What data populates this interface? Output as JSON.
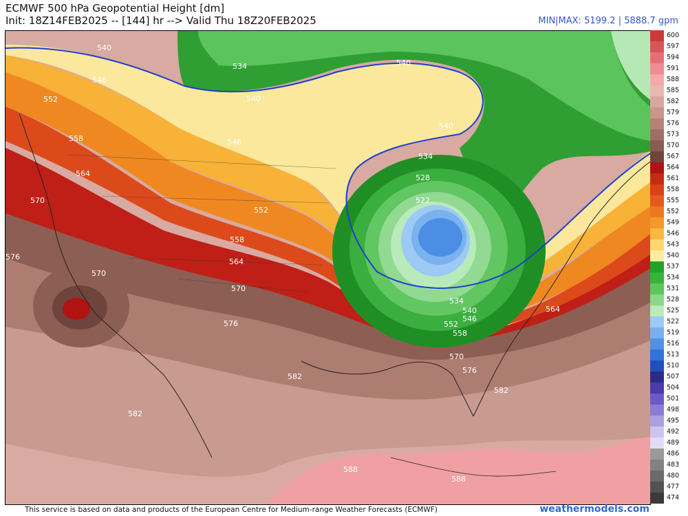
{
  "header": {
    "title_line1": "ECMWF 500 hPa Geopotential Height [dm]",
    "title_line2": "Init: 18Z14FEB2025 -- [144] hr --> Valid Thu 18Z20FEB2025",
    "minmax": "MIN|MAX: 5199.2 | 5888.7 gpm"
  },
  "colorbar": {
    "levels": [
      "600",
      "597",
      "594",
      "591",
      "588",
      "585",
      "582",
      "579",
      "576",
      "573",
      "570",
      "567",
      "564",
      "561",
      "558",
      "555",
      "552",
      "549",
      "546",
      "543",
      "540",
      "537",
      "534",
      "531",
      "528",
      "525",
      "522",
      "519",
      "516",
      "513",
      "510",
      "507",
      "504",
      "501",
      "498",
      "495",
      "492",
      "489",
      "486",
      "483",
      "480",
      "477",
      "474"
    ],
    "colors": [
      "#c93a3a",
      "#d8555a",
      "#e46f78",
      "#f08c93",
      "#f6a8aa",
      "#e8b8b0",
      "#d9a79e",
      "#c9968b",
      "#b68276",
      "#a06f64",
      "#8a5c52",
      "#6f443c",
      "#b11212",
      "#c92a15",
      "#d9421a",
      "#e45a1e",
      "#ee7820",
      "#f59a28",
      "#f9b840",
      "#fbd870",
      "#fbeea0",
      "#22a22a",
      "#36b43a",
      "#5ac85a",
      "#8ad88a",
      "#b8ecb8",
      "#9ccaf5",
      "#78b0f0",
      "#5292e6",
      "#2f72da",
      "#1f50b8",
      "#2a2a8a",
      "#4a3aaa",
      "#6a5ac8",
      "#8a7cd6",
      "#aaa0e2",
      "#ccc4ee",
      "#e2dcf6",
      "#9a9a9a",
      "#828282",
      "#6a6a6a",
      "#525252",
      "#3a3a3a"
    ]
  },
  "contour_labels": [
    "540",
    "534",
    "540",
    "540",
    "546",
    "552",
    "558",
    "564",
    "570",
    "576",
    "570",
    "546",
    "552",
    "558",
    "564",
    "570",
    "576",
    "582",
    "582",
    "540",
    "534",
    "528",
    "522",
    "534",
    "540",
    "546",
    "552",
    "558",
    "564",
    "570",
    "576",
    "582",
    "588",
    "588"
  ],
  "footer": {
    "source": "This service is based on data and products of the European Centre for Medium-range Weather Forecasts (ECMWF)",
    "brand": "weathermodels.com"
  }
}
